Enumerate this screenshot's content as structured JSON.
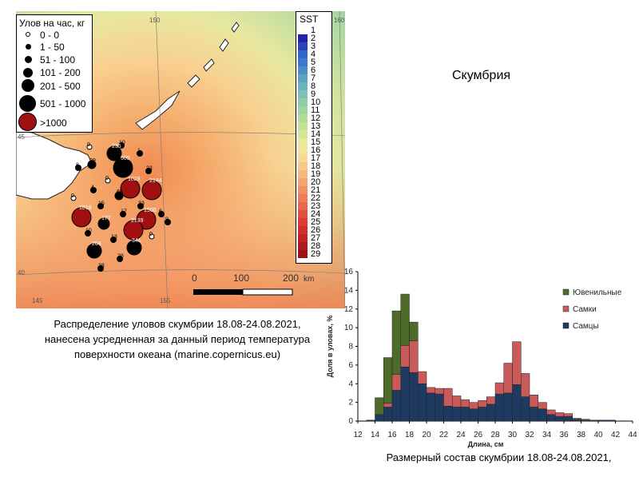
{
  "map": {
    "legend": {
      "title": "Улов на час, кг",
      "classes": [
        {
          "label": "0 - 0",
          "color": "#ffffff"
        },
        {
          "label": "1 - 50",
          "color": "#000000"
        },
        {
          "label": "51 - 100",
          "color": "#000000"
        },
        {
          "label": "101 - 200",
          "color": "#000000"
        },
        {
          "label": "201 - 500",
          "color": "#000000"
        },
        {
          "label": "501 - 1000",
          "color": "#000000"
        },
        {
          "label": ">1000",
          "color": "#a01010"
        }
      ]
    },
    "sst": {
      "title": "SST",
      "labels": [
        "1",
        "2",
        "3",
        "4",
        "5",
        "6",
        "7",
        "8",
        "9",
        "10",
        "11",
        "12",
        "13",
        "14",
        "15",
        "16",
        "17",
        "18",
        "19",
        "20",
        "21",
        "22",
        "23",
        "24",
        "25",
        "26",
        "27",
        "28",
        "29"
      ]
    },
    "grid_labels": {
      "lon_150": "150",
      "lon_155": "155",
      "lon_160": "160",
      "lon_145": "145",
      "lat_45": "45",
      "lat_40": "40"
    },
    "scale": {
      "labels": [
        "0",
        "100",
        "200"
      ],
      "unit": "km"
    },
    "catch_labels": [
      "0",
      "10",
      "235",
      "1",
      "99",
      "505",
      "23",
      "8",
      "1029",
      "2144",
      "4",
      "0",
      "65",
      "0",
      "33",
      "1818",
      "15",
      "17",
      "1500",
      "6",
      "177",
      "2139",
      "0",
      "9",
      "10",
      "13",
      "341",
      "204",
      "28",
      "38"
    ],
    "caption_lines": [
      "Распределение уловов скумбрии 18.08-24.08.2021,",
      "нанесена усредненная за данный период температура",
      "поверхности океана (marine.copernicus.eu)"
    ]
  },
  "species_title": "Скумбрия",
  "colors": {
    "juvenile": "#4e6b2a",
    "female": "#c85a5a",
    "male": "#1f3a60",
    "land": "#ffffff",
    "high_catch": "#a01010"
  },
  "chart_data": {
    "type": "bar",
    "stacked": true,
    "x": [
      12,
      13,
      14,
      15,
      16,
      17,
      18,
      19,
      20,
      21,
      22,
      23,
      24,
      25,
      26,
      27,
      28,
      29,
      30,
      31,
      32,
      33,
      34,
      35,
      36,
      37,
      38,
      39,
      40,
      41,
      42
    ],
    "series": [
      {
        "name": "Самцы",
        "values": [
          0,
          0.1,
          0.7,
          1.5,
          3.3,
          5.8,
          5.2,
          4.0,
          3.0,
          2.9,
          1.6,
          1.5,
          1.5,
          1.3,
          1.5,
          1.8,
          2.9,
          3.0,
          3.9,
          2.6,
          1.5,
          1.3,
          0.7,
          0.5,
          0.5,
          0.2,
          0.1,
          0.1,
          0.1,
          0.1,
          0
        ]
      },
      {
        "name": "Самки",
        "values": [
          0,
          0,
          0,
          0.4,
          1.7,
          2.3,
          3.4,
          1.3,
          0.6,
          0.6,
          1.9,
          1.2,
          0.8,
          0.7,
          0.7,
          0.8,
          1.2,
          3.2,
          4.6,
          2.5,
          1.3,
          0.7,
          0.5,
          0.4,
          0.3,
          0.1,
          0.1,
          0,
          0,
          0,
          0
        ]
      },
      {
        "name": "Ювенильные",
        "values": [
          0,
          0,
          1.8,
          4.9,
          6.8,
          5.5,
          2.0,
          0,
          0,
          0,
          0,
          0,
          0,
          0,
          0,
          0,
          0,
          0,
          0,
          0,
          0,
          0,
          0,
          0,
          0,
          0,
          0,
          0,
          0,
          0,
          0
        ]
      }
    ],
    "xlabel": "Длина, см",
    "ylabel": "Доля в уловах, %",
    "xticks": [
      12,
      14,
      16,
      18,
      20,
      22,
      24,
      26,
      28,
      30,
      32,
      34,
      36,
      38,
      40,
      42,
      44
    ],
    "yticks": [
      0,
      2,
      4,
      6,
      8,
      10,
      12,
      14,
      16
    ],
    "xlim": [
      12,
      44
    ],
    "ylim": [
      0,
      16
    ],
    "legend": "top-right",
    "grid": false
  },
  "hist_caption": "Размерный состав скумбрии 18.08-24.08.2021,"
}
